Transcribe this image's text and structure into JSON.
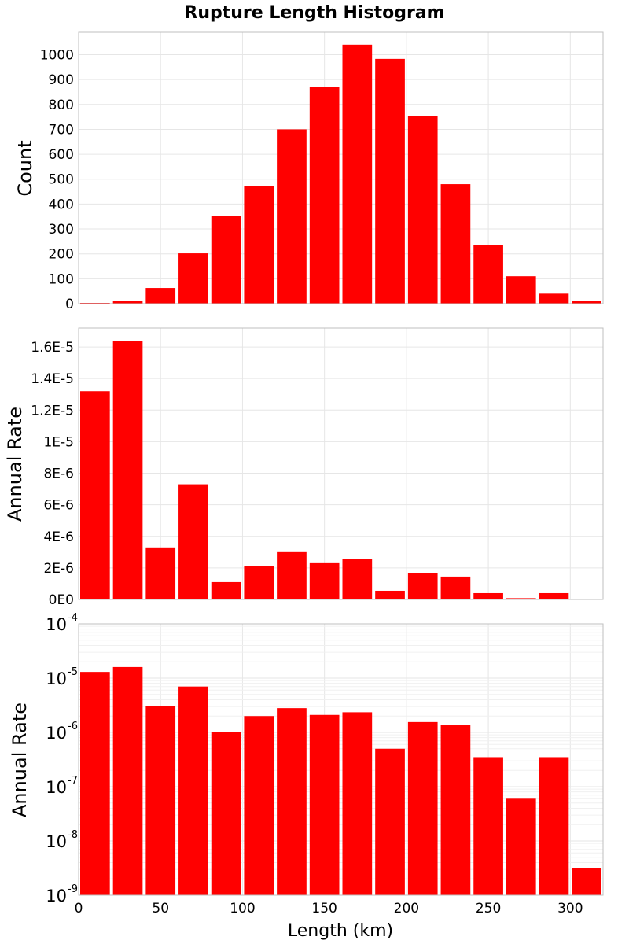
{
  "title": "Rupture Length Histogram",
  "chart_data": [
    {
      "type": "bar",
      "title": "Rupture Length Histogram",
      "xlabel": "",
      "ylabel": "Count",
      "bar_color": "#ff0000",
      "grid": true,
      "yscale": "linear",
      "x": [
        10,
        30,
        50,
        70,
        90,
        110,
        130,
        150,
        170,
        190,
        210,
        230,
        250,
        270,
        290,
        310
      ],
      "values": [
        2,
        12,
        63,
        202,
        353,
        473,
        700,
        870,
        1040,
        983,
        755,
        480,
        236,
        110,
        40,
        10
      ],
      "ylim": [
        0,
        1090
      ],
      "xlim": [
        0,
        320
      ],
      "yticks": [
        0,
        100,
        200,
        300,
        400,
        500,
        600,
        700,
        800,
        900,
        1000
      ],
      "ytick_labels": [
        "0",
        "100",
        "200",
        "300",
        "400",
        "500",
        "600",
        "700",
        "800",
        "900",
        "1000"
      ]
    },
    {
      "type": "bar",
      "title": "",
      "xlabel": "",
      "ylabel": "Annual Rate",
      "bar_color": "#ff0000",
      "grid": true,
      "yscale": "linear",
      "x": [
        10,
        30,
        50,
        70,
        90,
        110,
        130,
        150,
        170,
        190,
        210,
        230,
        250,
        270,
        290,
        310
      ],
      "values": [
        1.32e-05,
        1.64e-05,
        3.3e-06,
        7.3e-06,
        1.1e-06,
        2.1e-06,
        3e-06,
        2.3e-06,
        2.55e-06,
        5.5e-07,
        1.65e-06,
        1.45e-06,
        4e-07,
        8e-08,
        4e-07,
        0
      ],
      "ylim": [
        0,
        1.72e-05
      ],
      "xlim": [
        0,
        320
      ],
      "yticks": [
        0,
        2e-06,
        4e-06,
        6e-06,
        8e-06,
        1e-05,
        1.2e-05,
        1.4e-05,
        1.6e-05
      ],
      "ytick_labels": [
        "0E0",
        "2E-6",
        "4E-6",
        "6E-6",
        "8E-6",
        "1E-5",
        "1.2E-5",
        "1.4E-5",
        "1.6E-5"
      ]
    },
    {
      "type": "bar",
      "title": "",
      "xlabel": "Length (km)",
      "ylabel": "Annual Rate",
      "bar_color": "#ff0000",
      "grid": true,
      "yscale": "log",
      "x": [
        10,
        30,
        50,
        70,
        90,
        110,
        130,
        150,
        170,
        190,
        210,
        230,
        250,
        270,
        290,
        310
      ],
      "values": [
        1.3e-05,
        1.6e-05,
        3.1e-06,
        7e-06,
        1e-06,
        2e-06,
        2.8e-06,
        2.1e-06,
        2.35e-06,
        5e-07,
        1.55e-06,
        1.35e-06,
        3.5e-07,
        6e-08,
        3.5e-07,
        3.2e-09
      ],
      "ylim": [
        1e-09,
        0.0001
      ],
      "xlim": [
        0,
        320
      ],
      "ytick_base": "10",
      "ytick_exponents": [
        "-9",
        "-8",
        "-7",
        "-6",
        "-5",
        "-4"
      ],
      "xticks": [
        0,
        50,
        100,
        150,
        200,
        250,
        300
      ],
      "xtick_labels": [
        "0",
        "50",
        "100",
        "150",
        "200",
        "250",
        "300"
      ]
    }
  ]
}
